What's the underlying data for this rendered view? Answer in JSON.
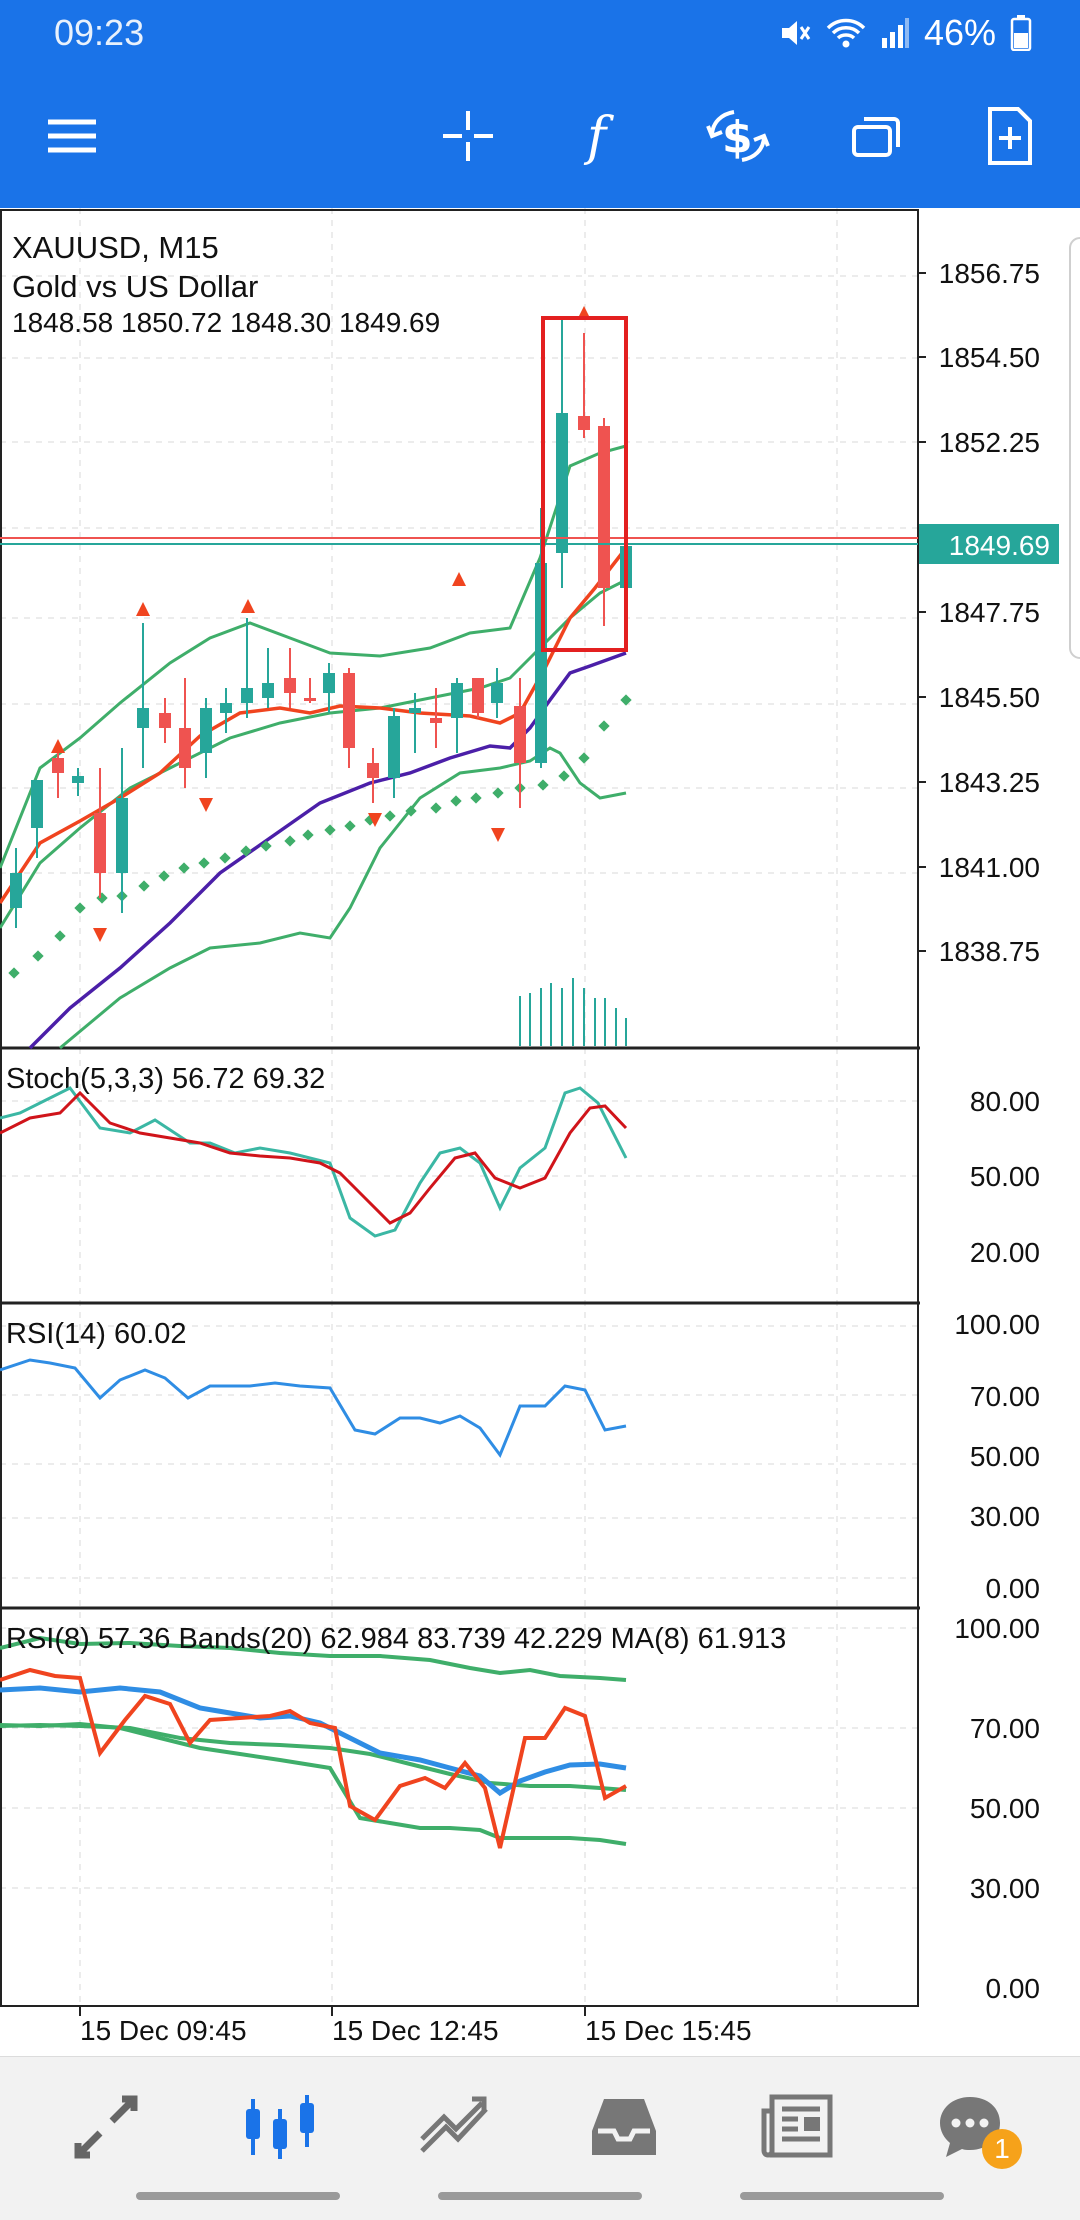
{
  "status_bar": {
    "time": "09:23",
    "battery": "46%",
    "icons": [
      "mute-icon",
      "wifi-icon",
      "signal-icon",
      "battery-icon"
    ]
  },
  "toolbar": {
    "icons": [
      "menu-icon",
      "crosshair-icon",
      "indicators-icon",
      "trade-icon",
      "windows-icon",
      "new-order-icon"
    ]
  },
  "symbol": {
    "header": "XAUUSD, M15",
    "name": "Gold vs US Dollar",
    "ohlc": "1848.58 1850.72 1848.30 1849.69",
    "current_price": "1849.69"
  },
  "price_axis": [
    "1856.75",
    "1854.50",
    "1852.25",
    "1847.75",
    "1845.50",
    "1843.25",
    "1841.00",
    "1838.75"
  ],
  "stoch": {
    "label": "Stoch(5,3,3) 56.72 69.32",
    "axis": [
      "80.00",
      "50.00",
      "20.00"
    ]
  },
  "rsi": {
    "label": "RSI(14) 60.02",
    "axis": [
      "100.00",
      "70.00",
      "50.00",
      "30.00",
      "0.00"
    ]
  },
  "rsi_bands": {
    "label": "RSI(8) 57.36 Bands(20) 62.984 83.739 42.229 MA(8) 61.913",
    "axis": [
      "100.00",
      "70.00",
      "50.00",
      "30.00",
      "0.00"
    ]
  },
  "time_axis": [
    "15 Dec 09:45",
    "15 Dec 12:45",
    "15 Dec 15:45"
  ],
  "bottom_nav": {
    "items": [
      "quotes-icon",
      "chart-icon",
      "trade-icon",
      "history-icon",
      "news-icon",
      "messages-icon"
    ],
    "messages_badge": "1"
  },
  "colors": {
    "accent": "#1a73e8",
    "bull": "#26a69a",
    "bear": "#ef5350",
    "ma_red": "#f0441f",
    "ma_purple": "#4b1fa8",
    "bands_green": "#3fae6a",
    "rsi_blue": "#2f8de4",
    "highlight": "#e32020"
  }
}
